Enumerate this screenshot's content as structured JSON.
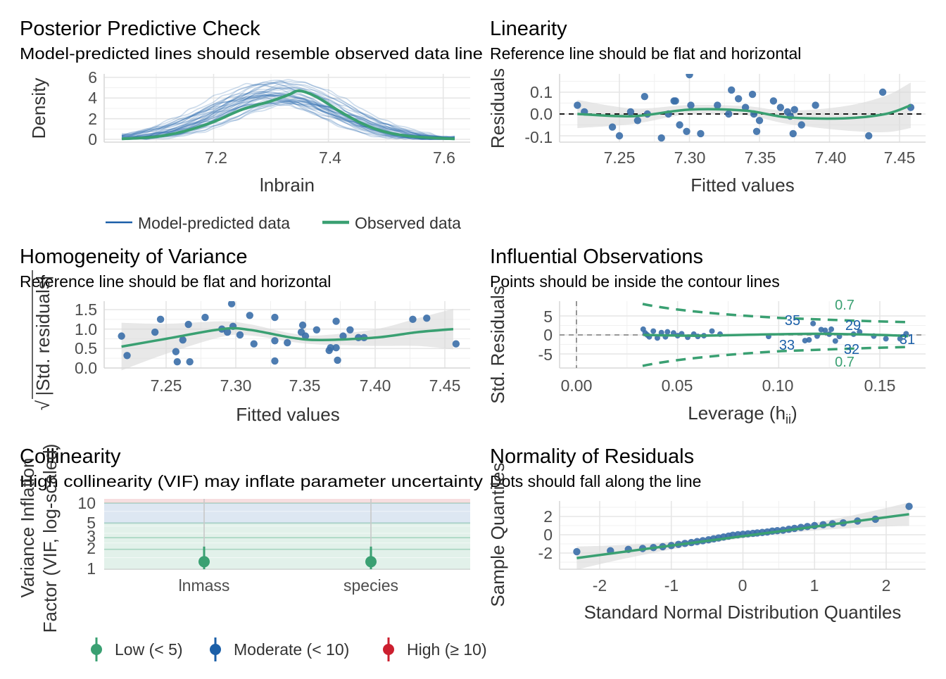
{
  "colors": {
    "blue": "#1b5fa8",
    "green": "#3aa072",
    "red": "#cc1f2f",
    "point": "#3a6ea8",
    "band": "#d9d9d9"
  },
  "panels": {
    "ppc": {
      "title": "Posterior Predictive Check",
      "subtitle": "Model-predicted lines should resemble observed data line",
      "xlabel": "lnbrain",
      "ylabel": "Density",
      "xticks": [
        "7.2",
        "7.4",
        "7.6"
      ],
      "yticks": [
        "0",
        "2",
        "4",
        "6"
      ],
      "legend": [
        "Model-predicted data",
        "Observed data"
      ]
    },
    "linearity": {
      "title": "Linearity",
      "subtitle": "Reference line should be flat and horizontal",
      "xlabel": "Fitted values",
      "ylabel": "Residuals",
      "xticks": [
        "7.25",
        "7.30",
        "7.35",
        "7.40",
        "7.45"
      ],
      "yticks": [
        "-0.1",
        "0.0",
        "0.1"
      ]
    },
    "homogeneity": {
      "title": "Homogeneity of Variance",
      "subtitle": "Reference line should be flat and horizontal",
      "xlabel": "Fitted values",
      "ylabel": "|Std. residuals|",
      "ylabel_prefix": "√",
      "xticks": [
        "7.25",
        "7.30",
        "7.35",
        "7.40",
        "7.45"
      ],
      "yticks": [
        "0.0",
        "0.5",
        "1.0",
        "1.5"
      ]
    },
    "influential": {
      "title": "Influential Observations",
      "subtitle": "Points should be inside the contour lines",
      "xlabel": "Leverage (h",
      "xlabel_sub": "ii",
      "xlabel_end": ")",
      "ylabel": "Std. Residuals",
      "xticks": [
        "0.00",
        "0.05",
        "0.10",
        "0.15"
      ],
      "yticks": [
        "-5",
        "0",
        "5"
      ],
      "contour_labels": [
        "0.7",
        "0.7"
      ],
      "point_labels": [
        "35",
        "29",
        "33",
        "32",
        "31"
      ]
    },
    "collinearity": {
      "title": "Collinearity",
      "subtitle": "High collinearity (VIF) may inflate parameter uncertainty",
      "ylabel_line1": "Variance Inflation",
      "ylabel_line2": "Factor (VIF, log-scaled)",
      "xticks": [
        "lnmass",
        "species"
      ],
      "yticks": [
        "1",
        "2",
        "3",
        "5",
        "10"
      ],
      "legend": [
        "Low (< 5)",
        "Moderate (< 10)",
        "High (≥ 10)"
      ]
    },
    "normality": {
      "title": "Normality of Residuals",
      "subtitle": "Dots should fall along the line",
      "xlabel": "Standard Normal Distribution Quantiles",
      "ylabel": "Sample Quantiles",
      "xticks": [
        "-2",
        "-1",
        "0",
        "1",
        "2"
      ],
      "yticks": [
        "-2",
        "0",
        "2"
      ]
    }
  },
  "chart_data": [
    {
      "type": "line",
      "panel": "ppc",
      "x_range": [
        7.04,
        7.62
      ],
      "y_range": [
        0,
        6
      ],
      "observed": {
        "name": "Observed data",
        "x": [
          7.04,
          7.1,
          7.15,
          7.2,
          7.25,
          7.3,
          7.33,
          7.35,
          7.38,
          7.42,
          7.46,
          7.5,
          7.55,
          7.62
        ],
        "y": [
          0.05,
          0.25,
          0.8,
          1.7,
          2.9,
          3.7,
          4.3,
          4.7,
          4.1,
          2.7,
          1.5,
          0.7,
          0.25,
          0.05
        ]
      }
    },
    {
      "type": "scatter",
      "panel": "linearity",
      "x_range": [
        7.21,
        7.47
      ],
      "y_range": [
        -0.11,
        0.19
      ],
      "points": [
        [
          7.22,
          0.04
        ],
        [
          7.225,
          0.01
        ],
        [
          7.245,
          -0.06
        ],
        [
          7.25,
          -0.1
        ],
        [
          7.258,
          0.01
        ],
        [
          7.263,
          -0.03
        ],
        [
          7.268,
          0.08
        ],
        [
          7.27,
          0.0
        ],
        [
          7.28,
          -0.11
        ],
        [
          7.285,
          0.0
        ],
        [
          7.289,
          0.06
        ],
        [
          7.29,
          0.06
        ],
        [
          7.293,
          -0.05
        ],
        [
          7.298,
          -0.08
        ],
        [
          7.3,
          0.18
        ],
        [
          7.301,
          0.04
        ],
        [
          7.308,
          -0.09
        ],
        [
          7.32,
          0.04
        ],
        [
          7.328,
          0.0
        ],
        [
          7.33,
          0.11
        ],
        [
          7.335,
          0.07
        ],
        [
          7.34,
          0.03
        ],
        [
          7.346,
          0.0
        ],
        [
          7.35,
          -0.03
        ],
        [
          7.345,
          0.09
        ],
        [
          7.348,
          -0.08
        ],
        [
          7.36,
          0.06
        ],
        [
          7.365,
          0.03
        ],
        [
          7.37,
          0.01
        ],
        [
          7.372,
          -0.01
        ],
        [
          7.374,
          -0.09
        ],
        [
          7.375,
          0.02
        ],
        [
          7.38,
          -0.05
        ],
        [
          7.39,
          0.04
        ],
        [
          7.428,
          -0.1
        ],
        [
          7.438,
          0.1
        ],
        [
          7.458,
          0.03
        ]
      ],
      "smooth": {
        "x": [
          7.22,
          7.26,
          7.3,
          7.34,
          7.37,
          7.41,
          7.44,
          7.458
        ],
        "y": [
          0.0,
          -0.01,
          0.02,
          0.015,
          -0.015,
          -0.02,
          0.0,
          0.04
        ]
      }
    },
    {
      "type": "scatter",
      "panel": "homogeneity",
      "x_range": [
        7.21,
        7.466
      ],
      "y_range": [
        0,
        1.7
      ],
      "points": [
        [
          7.218,
          0.82
        ],
        [
          7.222,
          0.32
        ],
        [
          7.242,
          0.92
        ],
        [
          7.246,
          1.25
        ],
        [
          7.257,
          0.42
        ],
        [
          7.258,
          0.16
        ],
        [
          7.262,
          0.72
        ],
        [
          7.266,
          1.12
        ],
        [
          7.267,
          0.16
        ],
        [
          7.278,
          1.3
        ],
        [
          7.29,
          1.0
        ],
        [
          7.294,
          0.92
        ],
        [
          7.297,
          1.65
        ],
        [
          7.298,
          1.07
        ],
        [
          7.303,
          0.85
        ],
        [
          7.31,
          1.35
        ],
        [
          7.313,
          0.62
        ],
        [
          7.328,
          1.3
        ],
        [
          7.328,
          0.18
        ],
        [
          7.328,
          0.7
        ],
        [
          7.337,
          0.65
        ],
        [
          7.347,
          0.92
        ],
        [
          7.348,
          1.1
        ],
        [
          7.35,
          0.82
        ],
        [
          7.358,
          0.98
        ],
        [
          7.367,
          0.45
        ],
        [
          7.368,
          0.52
        ],
        [
          7.372,
          0.52
        ],
        [
          7.372,
          1.2
        ],
        [
          7.373,
          0.2
        ],
        [
          7.377,
          0.82
        ],
        [
          7.382,
          0.98
        ],
        [
          7.388,
          0.78
        ],
        [
          7.392,
          0.78
        ],
        [
          7.427,
          1.25
        ],
        [
          7.437,
          1.28
        ],
        [
          7.458,
          0.62
        ]
      ],
      "smooth": {
        "x": [
          7.218,
          7.25,
          7.29,
          7.31,
          7.34,
          7.36,
          7.4,
          7.43,
          7.456
        ],
        "y": [
          0.55,
          0.75,
          1.0,
          0.98,
          0.78,
          0.72,
          0.78,
          0.92,
          1.0
        ]
      }
    },
    {
      "type": "scatter",
      "panel": "influential",
      "x_range": [
        -0.01,
        0.17
      ],
      "y_range": [
        -8,
        8
      ],
      "points": [
        [
          0.033,
          1.5
        ],
        [
          0.034,
          0.5
        ],
        [
          0.035,
          0.0
        ],
        [
          0.036,
          -0.5
        ],
        [
          0.038,
          1.0
        ],
        [
          0.04,
          -0.8
        ],
        [
          0.042,
          0.6
        ],
        [
          0.044,
          -0.5
        ],
        [
          0.045,
          0.8
        ],
        [
          0.048,
          0.5
        ],
        [
          0.05,
          -0.2
        ],
        [
          0.052,
          0.3
        ],
        [
          0.055,
          -0.6
        ],
        [
          0.058,
          0.2
        ],
        [
          0.06,
          -0.4
        ],
        [
          0.063,
          -0.2
        ],
        [
          0.067,
          1.0
        ],
        [
          0.071,
          0.2
        ],
        [
          0.095,
          -0.4
        ],
        [
          0.113,
          -1.5
        ],
        [
          0.115,
          -1.3
        ],
        [
          0.117,
          3.0
        ],
        [
          0.119,
          -0.3
        ],
        [
          0.121,
          1.4
        ],
        [
          0.123,
          1.2
        ],
        [
          0.125,
          0.2
        ],
        [
          0.126,
          1.5
        ],
        [
          0.128,
          -1.6
        ],
        [
          0.13,
          -0.4
        ],
        [
          0.137,
          0.2
        ],
        [
          0.14,
          0.8
        ],
        [
          0.147,
          -0.3
        ],
        [
          0.153,
          -1.0
        ],
        [
          0.16,
          -1.0
        ],
        [
          0.163,
          0.3
        ]
      ],
      "smooth": {
        "x": [
          0.033,
          0.06,
          0.09,
          0.12,
          0.15,
          0.164
        ],
        "y": [
          0.0,
          -0.2,
          0.1,
          0.3,
          0.0,
          -0.3
        ]
      }
    },
    {
      "type": "scatter",
      "panel": "collinearity",
      "categories": [
        "lnmass",
        "species"
      ],
      "values": [
        1.3,
        1.3
      ],
      "ci_high": [
        2.2,
        2.2
      ],
      "y_range": [
        1,
        11
      ]
    },
    {
      "type": "scatter",
      "panel": "normality",
      "x_range": [
        -2.5,
        2.5
      ],
      "y_range": [
        -3.3,
        3.5
      ],
      "points": [
        [
          -2.32,
          -1.85
        ],
        [
          -1.85,
          -1.75
        ],
        [
          -1.6,
          -1.6
        ],
        [
          -1.4,
          -1.5
        ],
        [
          -1.25,
          -1.4
        ],
        [
          -1.12,
          -1.3
        ],
        [
          -1.0,
          -1.18
        ],
        [
          -0.9,
          -1.05
        ],
        [
          -0.81,
          -0.95
        ],
        [
          -0.72,
          -0.85
        ],
        [
          -0.64,
          -0.75
        ],
        [
          -0.56,
          -0.65
        ],
        [
          -0.48,
          -0.55
        ],
        [
          -0.41,
          -0.45
        ],
        [
          -0.34,
          -0.35
        ],
        [
          -0.27,
          -0.25
        ],
        [
          -0.2,
          -0.15
        ],
        [
          -0.14,
          -0.05
        ],
        [
          -0.07,
          0.0
        ],
        [
          0.0,
          0.05
        ],
        [
          0.07,
          0.1
        ],
        [
          0.14,
          0.15
        ],
        [
          0.2,
          0.2
        ],
        [
          0.27,
          0.25
        ],
        [
          0.34,
          0.3
        ],
        [
          0.41,
          0.4
        ],
        [
          0.48,
          0.45
        ],
        [
          0.56,
          0.5
        ],
        [
          0.64,
          0.6
        ],
        [
          0.72,
          0.7
        ],
        [
          0.81,
          0.8
        ],
        [
          0.9,
          0.9
        ],
        [
          1.0,
          1.0
        ],
        [
          1.12,
          1.1
        ],
        [
          1.25,
          1.2
        ],
        [
          1.4,
          1.3
        ],
        [
          1.6,
          1.5
        ],
        [
          1.85,
          1.7
        ],
        [
          2.32,
          3.1
        ]
      ],
      "line": {
        "x": [
          -2.32,
          2.32
        ],
        "y": [
          -2.55,
          2.25
        ]
      }
    }
  ]
}
